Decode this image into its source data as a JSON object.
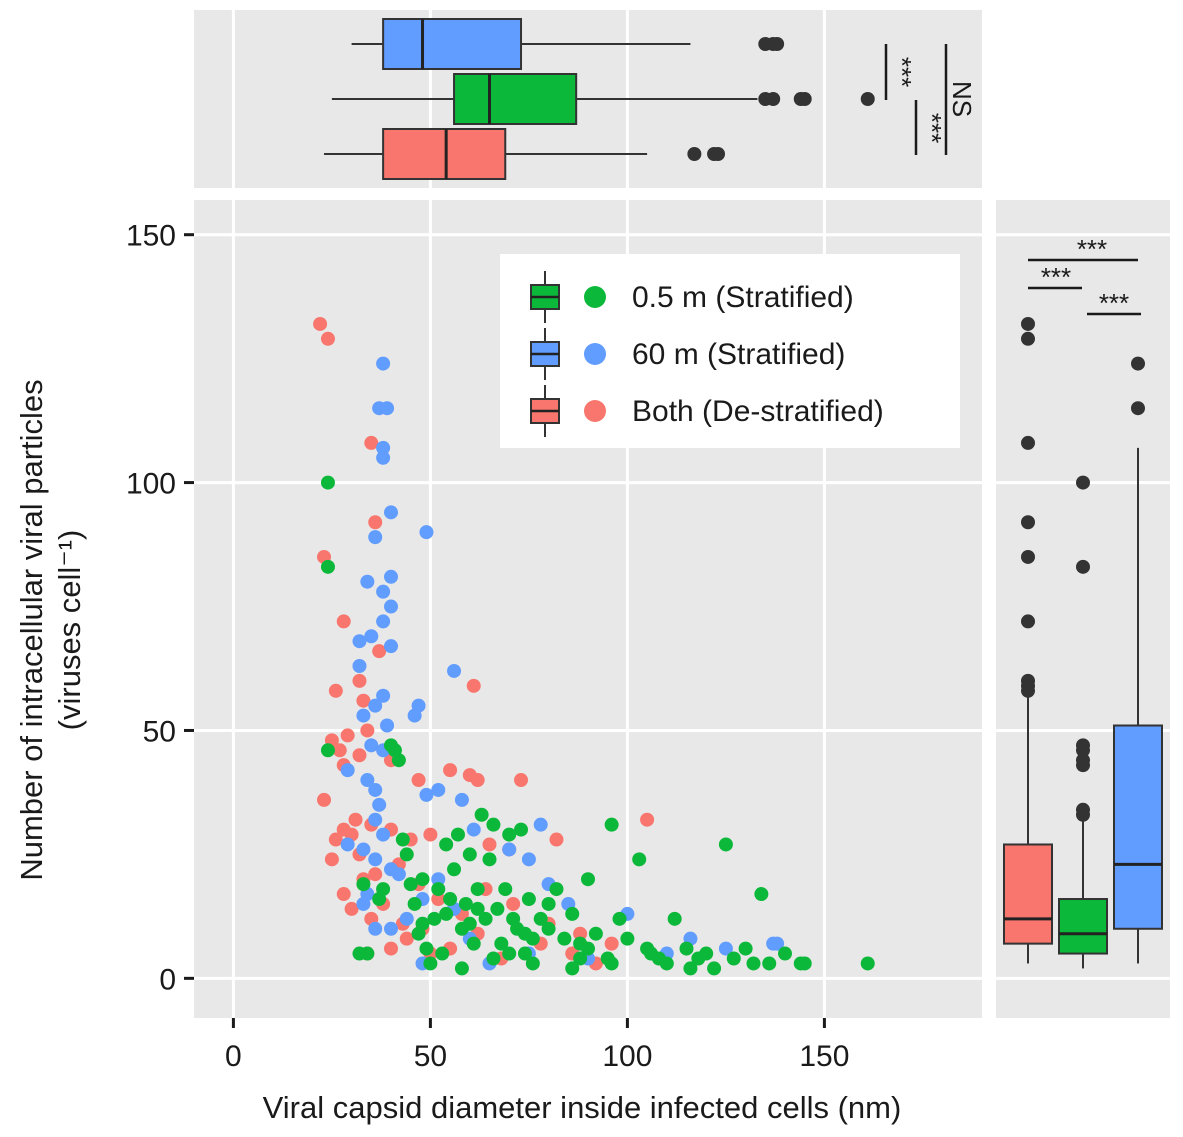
{
  "chart_data": {
    "type": "scatter",
    "xlabel": "Viral capsid diameter inside infected cells (nm)",
    "ylabel": "Number of intracellular viral particles",
    "ylabel_units": "(viruses cell⁻¹)",
    "xlim": [
      -10,
      190
    ],
    "ylim": [
      -8,
      157
    ],
    "x_ticks": [
      0,
      50,
      100,
      150
    ],
    "y_ticks": [
      0,
      50,
      100,
      150
    ],
    "x_tick_labels": [
      "0",
      "50",
      "100",
      "150"
    ],
    "y_tick_labels": [
      "0",
      "50",
      "100",
      "150"
    ],
    "legend": [
      {
        "key": "green",
        "label": "0.5 m (Stratified)",
        "color": "#0cb83a"
      },
      {
        "key": "blue",
        "label": "60 m (Stratified)",
        "color": "#619cff"
      },
      {
        "key": "red",
        "label": "Both (De-stratified)",
        "color": "#f8766d"
      }
    ],
    "series": [
      {
        "name": "0.5 m (Stratified)",
        "color": "#0cb83a",
        "points": [
          [
            24,
            100
          ],
          [
            24,
            83
          ],
          [
            24,
            46
          ],
          [
            32,
            5
          ],
          [
            33,
            19
          ],
          [
            34,
            5
          ],
          [
            37,
            16
          ],
          [
            38,
            18
          ],
          [
            40,
            47
          ],
          [
            41,
            46
          ],
          [
            42,
            44
          ],
          [
            43,
            28
          ],
          [
            44,
            25
          ],
          [
            45,
            19
          ],
          [
            46,
            15
          ],
          [
            47,
            9
          ],
          [
            48,
            20
          ],
          [
            49,
            6
          ],
          [
            50,
            3
          ],
          [
            51,
            12
          ],
          [
            52,
            18
          ],
          [
            53,
            5
          ],
          [
            54,
            27
          ],
          [
            55,
            16
          ],
          [
            56,
            22
          ],
          [
            57,
            29
          ],
          [
            58,
            10
          ],
          [
            59,
            15
          ],
          [
            60,
            25
          ],
          [
            61,
            7
          ],
          [
            62,
            18
          ],
          [
            63,
            33
          ],
          [
            64,
            12
          ],
          [
            65,
            24
          ],
          [
            66,
            31
          ],
          [
            67,
            14
          ],
          [
            68,
            7
          ],
          [
            69,
            18
          ],
          [
            70,
            29
          ],
          [
            71,
            12
          ],
          [
            72,
            10
          ],
          [
            73,
            30
          ],
          [
            74,
            5
          ],
          [
            75,
            16
          ],
          [
            76,
            8
          ],
          [
            78,
            12
          ],
          [
            80,
            10
          ],
          [
            82,
            18
          ],
          [
            84,
            8
          ],
          [
            86,
            13
          ],
          [
            88,
            7
          ],
          [
            90,
            20
          ],
          [
            92,
            9
          ],
          [
            95,
            4
          ],
          [
            96,
            31
          ],
          [
            98,
            12
          ],
          [
            100,
            8
          ],
          [
            103,
            24
          ],
          [
            105,
            6
          ],
          [
            108,
            4
          ],
          [
            110,
            3
          ],
          [
            112,
            12
          ],
          [
            115,
            6
          ],
          [
            118,
            4
          ],
          [
            120,
            5
          ],
          [
            122,
            2
          ],
          [
            125,
            27
          ],
          [
            127,
            4
          ],
          [
            130,
            6
          ],
          [
            132,
            3
          ],
          [
            134,
            17
          ],
          [
            136,
            3
          ],
          [
            140,
            5
          ],
          [
            144,
            3
          ],
          [
            145,
            3
          ],
          [
            161,
            3
          ],
          [
            58,
            2
          ],
          [
            66,
            4
          ],
          [
            76,
            3
          ],
          [
            86,
            2
          ],
          [
            96,
            3
          ],
          [
            106,
            5
          ],
          [
            116,
            2
          ],
          [
            70,
            5
          ],
          [
            80,
            15
          ],
          [
            90,
            6
          ],
          [
            60,
            11
          ],
          [
            74,
            9
          ],
          [
            88,
            4
          ],
          [
            62,
            14
          ],
          [
            54,
            13
          ],
          [
            48,
            11
          ]
        ]
      },
      {
        "name": "60 m (Stratified)",
        "color": "#619cff",
        "points": [
          [
            38,
            124
          ],
          [
            37,
            115
          ],
          [
            39,
            115
          ],
          [
            38,
            107
          ],
          [
            38,
            105
          ],
          [
            40,
            94
          ],
          [
            49,
            90
          ],
          [
            36,
            89
          ],
          [
            40,
            81
          ],
          [
            34,
            80
          ],
          [
            38,
            78
          ],
          [
            40,
            75
          ],
          [
            38,
            72
          ],
          [
            35,
            69
          ],
          [
            32,
            68
          ],
          [
            40,
            67
          ],
          [
            32,
            63
          ],
          [
            56,
            62
          ],
          [
            38,
            57
          ],
          [
            36,
            55
          ],
          [
            33,
            53
          ],
          [
            47,
            55
          ],
          [
            39,
            51
          ],
          [
            46,
            53
          ],
          [
            35,
            47
          ],
          [
            38,
            46
          ],
          [
            29,
            42
          ],
          [
            34,
            40
          ],
          [
            36,
            38
          ],
          [
            49,
            37
          ],
          [
            52,
            38
          ],
          [
            58,
            36
          ],
          [
            37,
            35
          ],
          [
            36,
            32
          ],
          [
            38,
            29
          ],
          [
            33,
            26
          ],
          [
            36,
            24
          ],
          [
            40,
            22
          ],
          [
            34,
            17
          ],
          [
            29,
            27
          ],
          [
            42,
            21
          ],
          [
            48,
            16
          ],
          [
            56,
            14
          ],
          [
            61,
            30
          ],
          [
            70,
            26
          ],
          [
            75,
            24
          ],
          [
            78,
            31
          ],
          [
            80,
            19
          ],
          [
            85,
            15
          ],
          [
            100,
            13
          ],
          [
            116,
            8
          ],
          [
            138,
            7
          ],
          [
            137,
            7
          ],
          [
            48,
            3
          ],
          [
            65,
            3
          ],
          [
            75,
            5
          ],
          [
            90,
            4
          ],
          [
            110,
            5
          ],
          [
            125,
            6
          ],
          [
            60,
            8
          ],
          [
            52,
            20
          ],
          [
            44,
            12
          ],
          [
            40,
            10
          ],
          [
            36,
            10
          ],
          [
            33,
            15
          ]
        ]
      },
      {
        "name": "Both (De-stratified)",
        "color": "#f8766d",
        "points": [
          [
            22,
            132
          ],
          [
            24,
            129
          ],
          [
            35,
            108
          ],
          [
            36,
            92
          ],
          [
            23,
            85
          ],
          [
            28,
            72
          ],
          [
            37,
            66
          ],
          [
            61,
            59
          ],
          [
            32,
            60
          ],
          [
            26,
            58
          ],
          [
            33,
            56
          ],
          [
            34,
            50
          ],
          [
            29,
            49
          ],
          [
            25,
            48
          ],
          [
            27,
            46
          ],
          [
            32,
            45
          ],
          [
            28,
            43
          ],
          [
            40,
            44
          ],
          [
            47,
            40
          ],
          [
            55,
            42
          ],
          [
            60,
            41
          ],
          [
            62,
            40
          ],
          [
            73,
            40
          ],
          [
            23,
            36
          ],
          [
            31,
            32
          ],
          [
            28,
            30
          ],
          [
            30,
            29
          ],
          [
            26,
            28
          ],
          [
            35,
            31
          ],
          [
            40,
            30
          ],
          [
            45,
            28
          ],
          [
            50,
            29
          ],
          [
            65,
            27
          ],
          [
            70,
            26
          ],
          [
            82,
            28
          ],
          [
            105,
            32
          ],
          [
            25,
            24
          ],
          [
            32,
            25
          ],
          [
            36,
            21
          ],
          [
            42,
            23
          ],
          [
            47,
            19
          ],
          [
            52,
            16
          ],
          [
            58,
            13
          ],
          [
            64,
            18
          ],
          [
            71,
            15
          ],
          [
            80,
            11
          ],
          [
            88,
            9
          ],
          [
            96,
            7
          ],
          [
            30,
            14
          ],
          [
            35,
            12
          ],
          [
            40,
            6
          ],
          [
            34,
            5
          ],
          [
            44,
            8
          ],
          [
            48,
            10
          ],
          [
            55,
            6
          ],
          [
            62,
            9
          ],
          [
            68,
            4
          ],
          [
            78,
            7
          ],
          [
            86,
            5
          ],
          [
            92,
            3
          ],
          [
            28,
            17
          ],
          [
            33,
            20
          ],
          [
            38,
            15
          ],
          [
            43,
            11
          ],
          [
            50,
            5
          ]
        ]
      }
    ],
    "top_boxplot": {
      "orientation": "horizontal",
      "boxes": [
        {
          "group": "60 m (Stratified)",
          "color": "#619cff",
          "whisker_low": 30,
          "q1": 38,
          "median": 48,
          "q3": 73,
          "whisker_high": 116,
          "outliers": [
            135,
            137,
            138
          ]
        },
        {
          "group": "0.5 m (Stratified)",
          "color": "#0cb83a",
          "whisker_low": 25,
          "q1": 56,
          "median": 65,
          "q3": 87,
          "whisker_high": 133,
          "outliers": [
            135,
            137,
            144,
            145,
            161
          ]
        },
        {
          "group": "Both (De-stratified)",
          "color": "#f8766d",
          "whisker_low": 23,
          "q1": 38,
          "median": 54,
          "q3": 69,
          "whisker_high": 105,
          "outliers": [
            117,
            122,
            123
          ]
        }
      ],
      "significance": [
        {
          "label": "***",
          "between": [
            "60 m (Stratified)",
            "0.5 m (Stratified)"
          ]
        },
        {
          "label": "***",
          "between": [
            "0.5 m (Stratified)",
            "Both (De-stratified)"
          ]
        },
        {
          "label": "NS",
          "between": [
            "60 m (Stratified)",
            "Both (De-stratified)"
          ]
        }
      ]
    },
    "right_boxplot": {
      "orientation": "vertical",
      "boxes": [
        {
          "group": "Both (De-stratified)",
          "color": "#f8766d",
          "whisker_low": 3,
          "q1": 7,
          "median": 12,
          "q3": 27,
          "whisker_high": 57,
          "outliers": [
            58,
            59,
            60,
            72,
            85,
            92,
            108,
            129,
            132
          ]
        },
        {
          "group": "0.5 m (Stratified)",
          "color": "#0cb83a",
          "whisker_low": 2,
          "q1": 5,
          "median": 9,
          "q3": 16,
          "whisker_high": 32,
          "outliers": [
            33,
            34,
            43,
            44,
            46,
            47,
            83,
            100
          ]
        },
        {
          "group": "60 m (Stratified)",
          "color": "#619cff",
          "whisker_low": 3,
          "q1": 10,
          "median": 23,
          "q3": 51,
          "whisker_high": 107,
          "outliers": [
            115,
            124
          ]
        }
      ],
      "significance": [
        {
          "label": "***",
          "between": [
            "Both (De-stratified)",
            "60 m (Stratified)"
          ]
        },
        {
          "label": "***",
          "between": [
            "Both (De-stratified)",
            "0.5 m (Stratified)"
          ]
        },
        {
          "label": "***",
          "between": [
            "0.5 m (Stratified)",
            "60 m (Stratified)"
          ]
        }
      ]
    }
  }
}
